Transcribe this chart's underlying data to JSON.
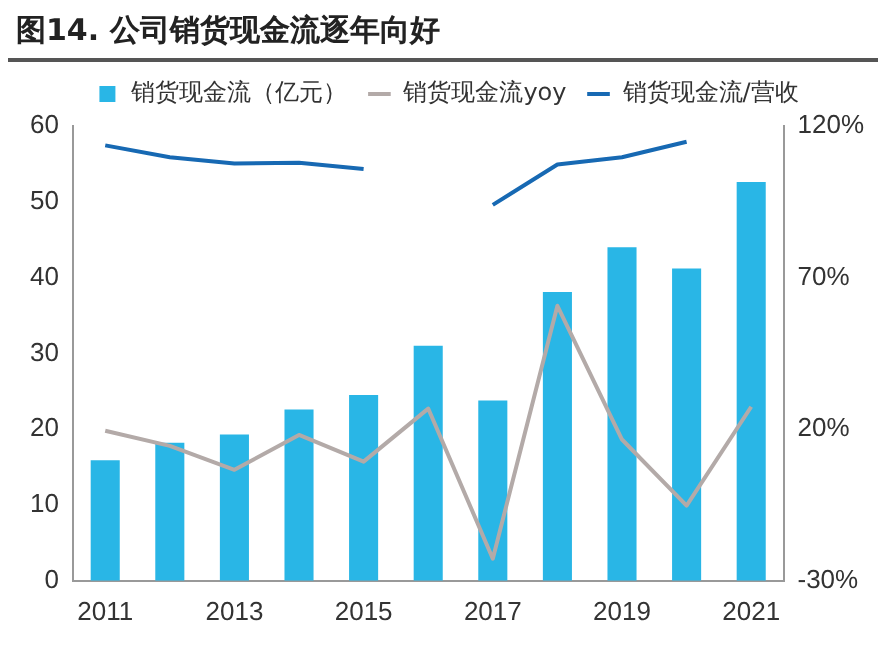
{
  "chart_data": {
    "type": "bar",
    "title": "图14. 公司销货现金流逐年向好",
    "categories": [
      "2011",
      null,
      "2013",
      null,
      "2015",
      null,
      "2017",
      null,
      "2019",
      null,
      "2021"
    ],
    "series": [
      {
        "name": "销货现金流（亿元）",
        "color": "#29b6e6",
        "values": [
          15.9,
          18.2,
          19.3,
          22.6,
          24.5,
          31.0,
          23.8,
          38.1,
          44.0,
          41.2,
          52.6
        ]
      },
      {
        "name": "销货现金流yoy",
        "type": "line",
        "axis": "y2",
        "color": "#b3aaa8",
        "values": [
          19.5,
          14.5,
          6.6,
          18.1,
          9.3,
          26.8,
          -22.7,
          60.7,
          16.6,
          -5.2,
          27.4
        ]
      },
      {
        "name": "销货现金流/营收",
        "type": "line",
        "axis": "y2",
        "color": "#1769b3",
        "values": [
          113.6,
          109.7,
          107.6,
          107.9,
          105.8,
          null,
          94,
          107.3,
          109.7,
          114.8,
          null
        ]
      }
    ],
    "ylim": [
      0,
      60
    ],
    "yticks": [
      0,
      10,
      20,
      30,
      40,
      50,
      60
    ],
    "y2lim": [
      -30,
      120
    ],
    "y2ticks": [
      {
        "value": -30,
        "label": "-30%"
      },
      {
        "value": 20,
        "label": "20%"
      },
      {
        "value": 70,
        "label": "70%"
      },
      {
        "value": 120,
        "label": "120%"
      }
    ],
    "grid": false,
    "legend": "top",
    "marker": "none",
    "line_style": "solid"
  }
}
